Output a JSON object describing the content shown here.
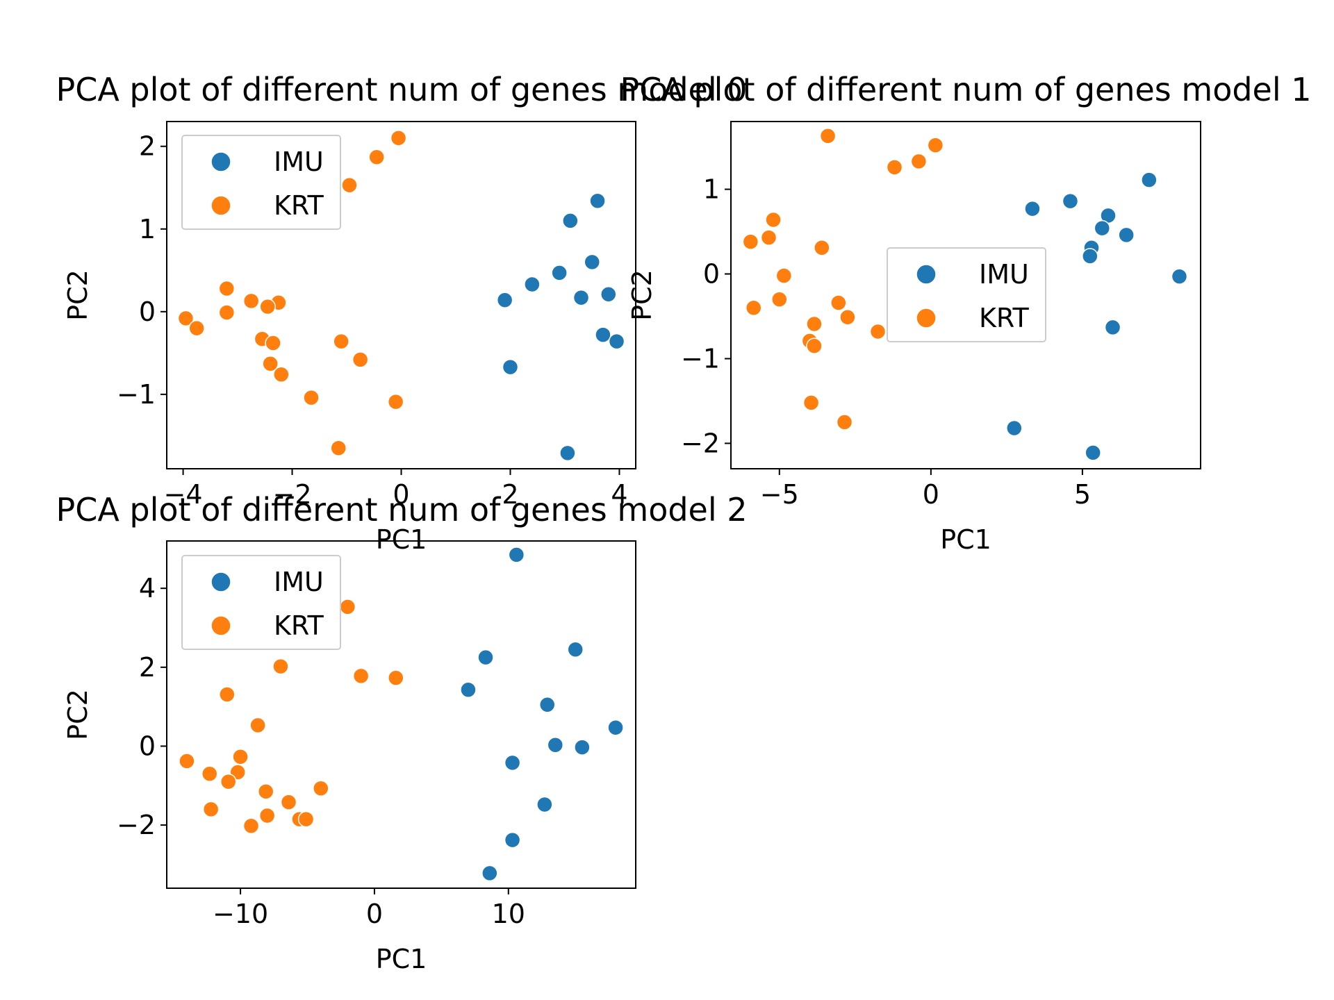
{
  "colors": {
    "IMU": "#1f77b4",
    "KRT": "#ff7f0e",
    "marker_edge": "#ffffff",
    "frame": "#000000",
    "legend_edge": "#cccccc"
  },
  "chart_data": [
    {
      "type": "scatter",
      "title": "PCA plot of different num of genes model 0",
      "xlabel": "PC1",
      "ylabel": "PC2",
      "xlim": [
        -4.3,
        4.3
      ],
      "ylim": [
        -1.9,
        2.3
      ],
      "xticks": [
        -4,
        -2,
        0,
        2,
        4
      ],
      "xtick_labels": [
        "−4",
        "−2",
        "0",
        "2",
        "4"
      ],
      "yticks": [
        -1,
        0,
        1,
        2
      ],
      "ytick_labels": [
        "−1",
        "0",
        "1",
        "2"
      ],
      "legend": {
        "placement": "upper-left",
        "entries": [
          "IMU",
          "KRT"
        ]
      },
      "series": [
        {
          "name": "IMU",
          "points": [
            [
              3.6,
              1.34
            ],
            [
              3.1,
              1.1
            ],
            [
              3.5,
              0.6
            ],
            [
              2.9,
              0.47
            ],
            [
              2.4,
              0.33
            ],
            [
              1.9,
              0.14
            ],
            [
              3.3,
              0.17
            ],
            [
              3.8,
              0.21
            ],
            [
              3.7,
              -0.28
            ],
            [
              3.95,
              -0.36
            ],
            [
              2.0,
              -0.67
            ],
            [
              3.05,
              -1.71
            ]
          ]
        },
        {
          "name": "KRT",
          "points": [
            [
              -0.05,
              2.1
            ],
            [
              -0.45,
              1.87
            ],
            [
              -0.95,
              1.53
            ],
            [
              -3.2,
              0.28
            ],
            [
              -2.75,
              0.13
            ],
            [
              -2.25,
              0.11
            ],
            [
              -2.45,
              0.06
            ],
            [
              -3.2,
              -0.01
            ],
            [
              -3.95,
              -0.08
            ],
            [
              -3.75,
              -0.2
            ],
            [
              -2.55,
              -0.33
            ],
            [
              -2.35,
              -0.38
            ],
            [
              -1.1,
              -0.36
            ],
            [
              -0.75,
              -0.58
            ],
            [
              -2.4,
              -0.63
            ],
            [
              -2.2,
              -0.76
            ],
            [
              -1.65,
              -1.04
            ],
            [
              -0.1,
              -1.09
            ],
            [
              -1.15,
              -1.65
            ]
          ]
        }
      ]
    },
    {
      "type": "scatter",
      "title": "PCA plot of different num of genes model 1",
      "xlabel": "PC1",
      "ylabel": "PC2",
      "xlim": [
        -6.6,
        8.9
      ],
      "ylim": [
        -2.3,
        1.8
      ],
      "xticks": [
        -5,
        0,
        5
      ],
      "xtick_labels": [
        "−5",
        "0",
        "5"
      ],
      "yticks": [
        -2,
        -1,
        0,
        1
      ],
      "ytick_labels": [
        "−2",
        "−1",
        "0",
        "1"
      ],
      "legend": {
        "placement": "center",
        "entries": [
          "IMU",
          "KRT"
        ]
      },
      "series": [
        {
          "name": "IMU",
          "points": [
            [
              7.2,
              1.11
            ],
            [
              4.6,
              0.86
            ],
            [
              3.35,
              0.77
            ],
            [
              5.85,
              0.69
            ],
            [
              5.65,
              0.54
            ],
            [
              6.45,
              0.46
            ],
            [
              5.3,
              0.31
            ],
            [
              5.25,
              0.21
            ],
            [
              8.2,
              -0.03
            ],
            [
              6.0,
              -0.63
            ],
            [
              2.75,
              -1.82
            ],
            [
              5.35,
              -2.11
            ]
          ]
        },
        {
          "name": "KRT",
          "points": [
            [
              -3.4,
              1.63
            ],
            [
              0.15,
              1.52
            ],
            [
              -0.4,
              1.33
            ],
            [
              -1.2,
              1.26
            ],
            [
              -5.2,
              0.64
            ],
            [
              -5.35,
              0.43
            ],
            [
              -5.95,
              0.38
            ],
            [
              -3.6,
              0.31
            ],
            [
              -4.85,
              -0.02
            ],
            [
              -5.0,
              -0.3
            ],
            [
              -5.85,
              -0.4
            ],
            [
              -3.05,
              -0.34
            ],
            [
              -2.75,
              -0.51
            ],
            [
              -3.85,
              -0.59
            ],
            [
              -1.75,
              -0.68
            ],
            [
              -4.0,
              -0.79
            ],
            [
              -3.85,
              -0.85
            ],
            [
              -3.95,
              -1.52
            ],
            [
              -2.85,
              -1.75
            ]
          ]
        }
      ]
    },
    {
      "type": "scatter",
      "title": "PCA plot of different num of genes model 2",
      "xlabel": "PC1",
      "ylabel": "PC2",
      "xlim": [
        -15.5,
        19.5
      ],
      "ylim": [
        -3.6,
        5.2
      ],
      "xticks": [
        -10,
        0,
        10
      ],
      "xtick_labels": [
        "−10",
        "0",
        "10"
      ],
      "yticks": [
        -2,
        0,
        2,
        4
      ],
      "ytick_labels": [
        "−2",
        "0",
        "2",
        "4"
      ],
      "legend": {
        "placement": "upper-left",
        "entries": [
          "IMU",
          "KRT"
        ]
      },
      "series": [
        {
          "name": "IMU",
          "points": [
            [
              10.6,
              4.85
            ],
            [
              15.0,
              2.45
            ],
            [
              8.3,
              2.25
            ],
            [
              7.0,
              1.43
            ],
            [
              12.9,
              1.05
            ],
            [
              13.5,
              0.03
            ],
            [
              15.5,
              -0.03
            ],
            [
              18.0,
              0.47
            ],
            [
              10.3,
              -0.42
            ],
            [
              12.7,
              -1.48
            ],
            [
              10.3,
              -2.38
            ],
            [
              8.6,
              -3.22
            ]
          ]
        },
        {
          "name": "KRT",
          "points": [
            [
              -2.0,
              3.53
            ],
            [
              -7.0,
              2.02
            ],
            [
              -1.0,
              1.78
            ],
            [
              1.6,
              1.73
            ],
            [
              -11.0,
              1.31
            ],
            [
              -8.7,
              0.53
            ],
            [
              -10.0,
              -0.27
            ],
            [
              -14.0,
              -0.38
            ],
            [
              -12.3,
              -0.7
            ],
            [
              -10.2,
              -0.66
            ],
            [
              -10.9,
              -0.9
            ],
            [
              -4.0,
              -1.07
            ],
            [
              -8.1,
              -1.15
            ],
            [
              -6.4,
              -1.42
            ],
            [
              -12.2,
              -1.6
            ],
            [
              -8.0,
              -1.76
            ],
            [
              -5.6,
              -1.85
            ],
            [
              -5.1,
              -1.85
            ],
            [
              -9.2,
              -2.02
            ]
          ]
        }
      ]
    }
  ]
}
